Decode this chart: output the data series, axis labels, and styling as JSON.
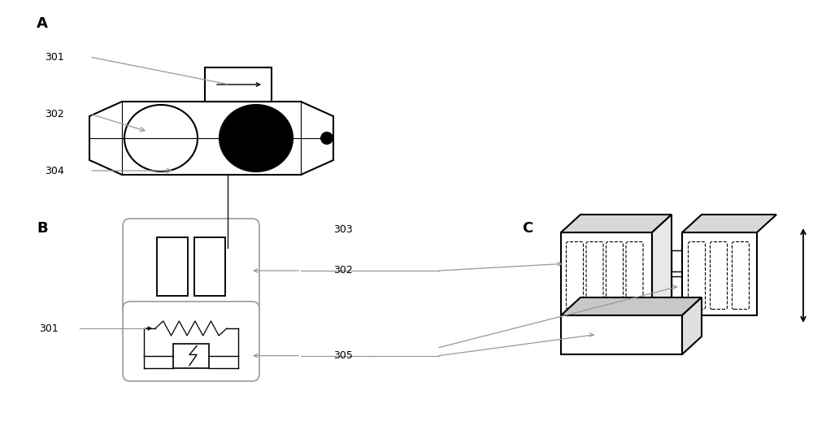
{
  "bg_color": "#ffffff",
  "lc": "#000000",
  "gc": "#999999",
  "lw": 1.5,
  "panel_A": "A",
  "panel_B": "B",
  "panel_C": "C",
  "label_301_A": "301",
  "label_302_A": "302",
  "label_304_A": "304",
  "label_301_B": "301",
  "label_302_BC": "302",
  "label_303": "303",
  "label_305": "305"
}
